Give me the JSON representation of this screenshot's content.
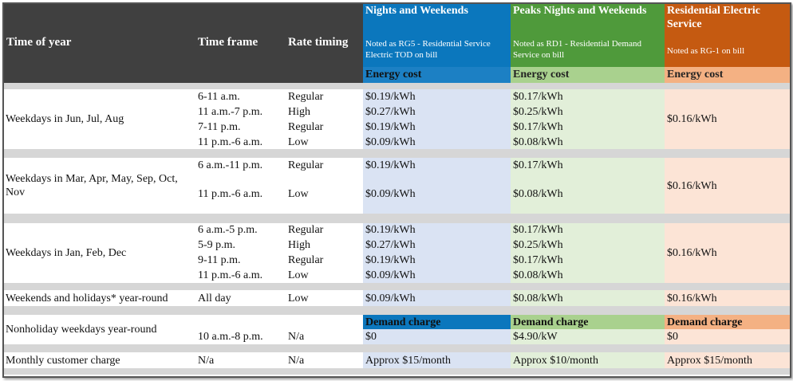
{
  "header": {
    "columns": [
      "Time of year",
      "Time frame",
      "Rate timing"
    ],
    "plans": [
      {
        "name": "Nights and Weekends",
        "note": "Noted as RG5 - Residential Service Electric TOD on bill",
        "energy_label": "Energy cost",
        "demand_label": "Demand charge"
      },
      {
        "name": "Peaks Nights and Weekends",
        "note": "Noted as RD1 - Residential Demand Service on bill",
        "energy_label": "Energy cost",
        "demand_label": "Demand charge"
      },
      {
        "name": "Residential Electric Service",
        "note": "Noted as RG-1 on bill",
        "energy_label": "Energy cost",
        "demand_label": "Demand charge"
      }
    ]
  },
  "rows": [
    {
      "label": "Weekdays in Jun, Jul, Aug",
      "lines": [
        [
          "6-11 a.m.",
          "Regular",
          "$0.19/kWh",
          "$0.17/kWh"
        ],
        [
          "11 a.m.-7 p.m.",
          "High",
          "$0.27/kWh",
          "$0.25/kWh"
        ],
        [
          "7-11 p.m.",
          "Regular",
          "$0.19/kWh",
          "$0.17/kWh"
        ],
        [
          "11 p.m.-6 a.m.",
          "Low",
          "$0.09/kWh",
          "$0.08/kWh"
        ]
      ],
      "residential": "$0.16/kWh"
    },
    {
      "label": "Weekdays in Mar, Apr, May, Sep, Oct, Nov",
      "lines": [
        [
          "6 a.m.-11 p.m.",
          "Regular",
          "$0.19/kWh",
          "$0.17/kWh"
        ],
        [
          "11 p.m.-6 a.m.",
          "Low",
          "$0.09/kWh",
          "$0.08/kWh"
        ]
      ],
      "residential": "$0.16/kWh"
    },
    {
      "label": "Weekdays in Jan, Feb, Dec",
      "lines": [
        [
          "6 a.m.-5 p.m.",
          "Regular",
          "$0.19/kWh",
          "$0.17/kWh"
        ],
        [
          "5-9 p.m.",
          "High",
          "$0.27/kWh",
          "$0.25/kWh"
        ],
        [
          "9-11 p.m.",
          "Regular",
          "$0.19/kWh",
          "$0.17/kWh"
        ],
        [
          "11 p.m.-6 a.m.",
          "Low",
          "$0.09/kWh",
          "$0.08/kWh"
        ]
      ],
      "residential": "$0.16/kWh"
    },
    {
      "label": "Weekends and holidays* year-round",
      "lines": [
        [
          "All day",
          "Low",
          "$0.09/kWh",
          "$0.08/kWh"
        ]
      ],
      "residential": "$0.16/kWh"
    },
    {
      "label": "Nonholiday weekdays year-round",
      "lines": [
        [
          "10 a.m.-8 p.m.",
          "N/a",
          "$0",
          "$4.90/kW"
        ]
      ],
      "residential": "$0"
    },
    {
      "label": "Monthly customer charge",
      "lines": [
        [
          "N/a",
          "N/a",
          "Approx $15/month",
          "Approx $10/month"
        ]
      ],
      "residential": "Approx $15/month"
    }
  ]
}
